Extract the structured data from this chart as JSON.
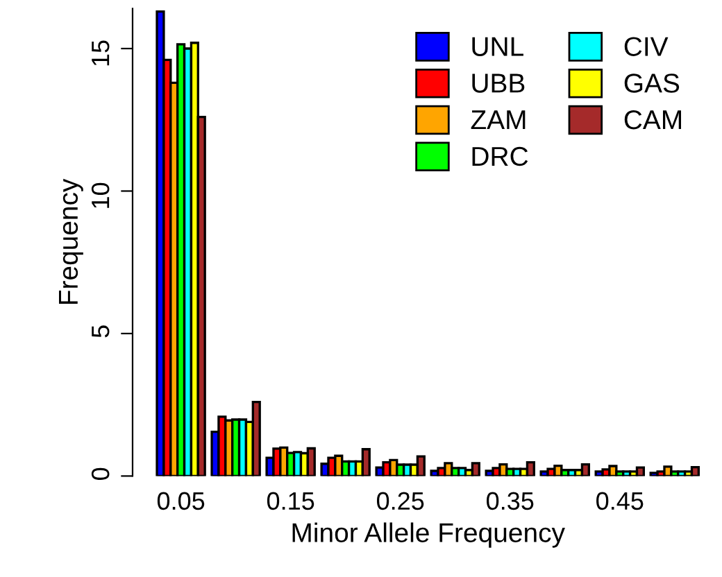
{
  "chart_data": {
    "type": "bar",
    "xlabel": "Minor Allele Frequency",
    "ylabel": "Frequency",
    "categories": [
      "0.05",
      null,
      "0.15",
      null,
      "0.25",
      null,
      "0.35",
      null,
      "0.45",
      null
    ],
    "series": [
      {
        "name": "UNL",
        "color": "#0000ff",
        "values": [
          16.3,
          1.55,
          0.64,
          0.43,
          0.3,
          0.18,
          0.18,
          0.16,
          0.16,
          0.11
        ]
      },
      {
        "name": "UBB",
        "color": "#ff0000",
        "values": [
          14.6,
          2.08,
          0.96,
          0.64,
          0.48,
          0.28,
          0.28,
          0.25,
          0.23,
          0.16
        ]
      },
      {
        "name": "ZAM",
        "color": "#ffa500",
        "values": [
          13.8,
          1.95,
          1.0,
          0.71,
          0.56,
          0.45,
          0.41,
          0.36,
          0.35,
          0.33
        ]
      },
      {
        "name": "DRC",
        "color": "#00ff00",
        "values": [
          15.15,
          1.98,
          0.81,
          0.51,
          0.4,
          0.28,
          0.25,
          0.21,
          0.16,
          0.16
        ]
      },
      {
        "name": "CIV",
        "color": "#00ffff",
        "values": [
          15.0,
          1.98,
          0.84,
          0.51,
          0.4,
          0.28,
          0.25,
          0.21,
          0.16,
          0.16
        ]
      },
      {
        "name": "GAS",
        "color": "#ffff00",
        "values": [
          15.2,
          1.9,
          0.8,
          0.51,
          0.4,
          0.21,
          0.25,
          0.21,
          0.16,
          0.16
        ]
      },
      {
        "name": "CAM",
        "color": "#a52a2a",
        "values": [
          12.6,
          2.6,
          0.97,
          0.94,
          0.69,
          0.45,
          0.48,
          0.41,
          0.3,
          0.31
        ]
      }
    ],
    "ylim": [
      0,
      16.4
    ],
    "yticks": [
      0,
      5,
      10,
      15
    ],
    "grid": false,
    "legend": "top right"
  }
}
